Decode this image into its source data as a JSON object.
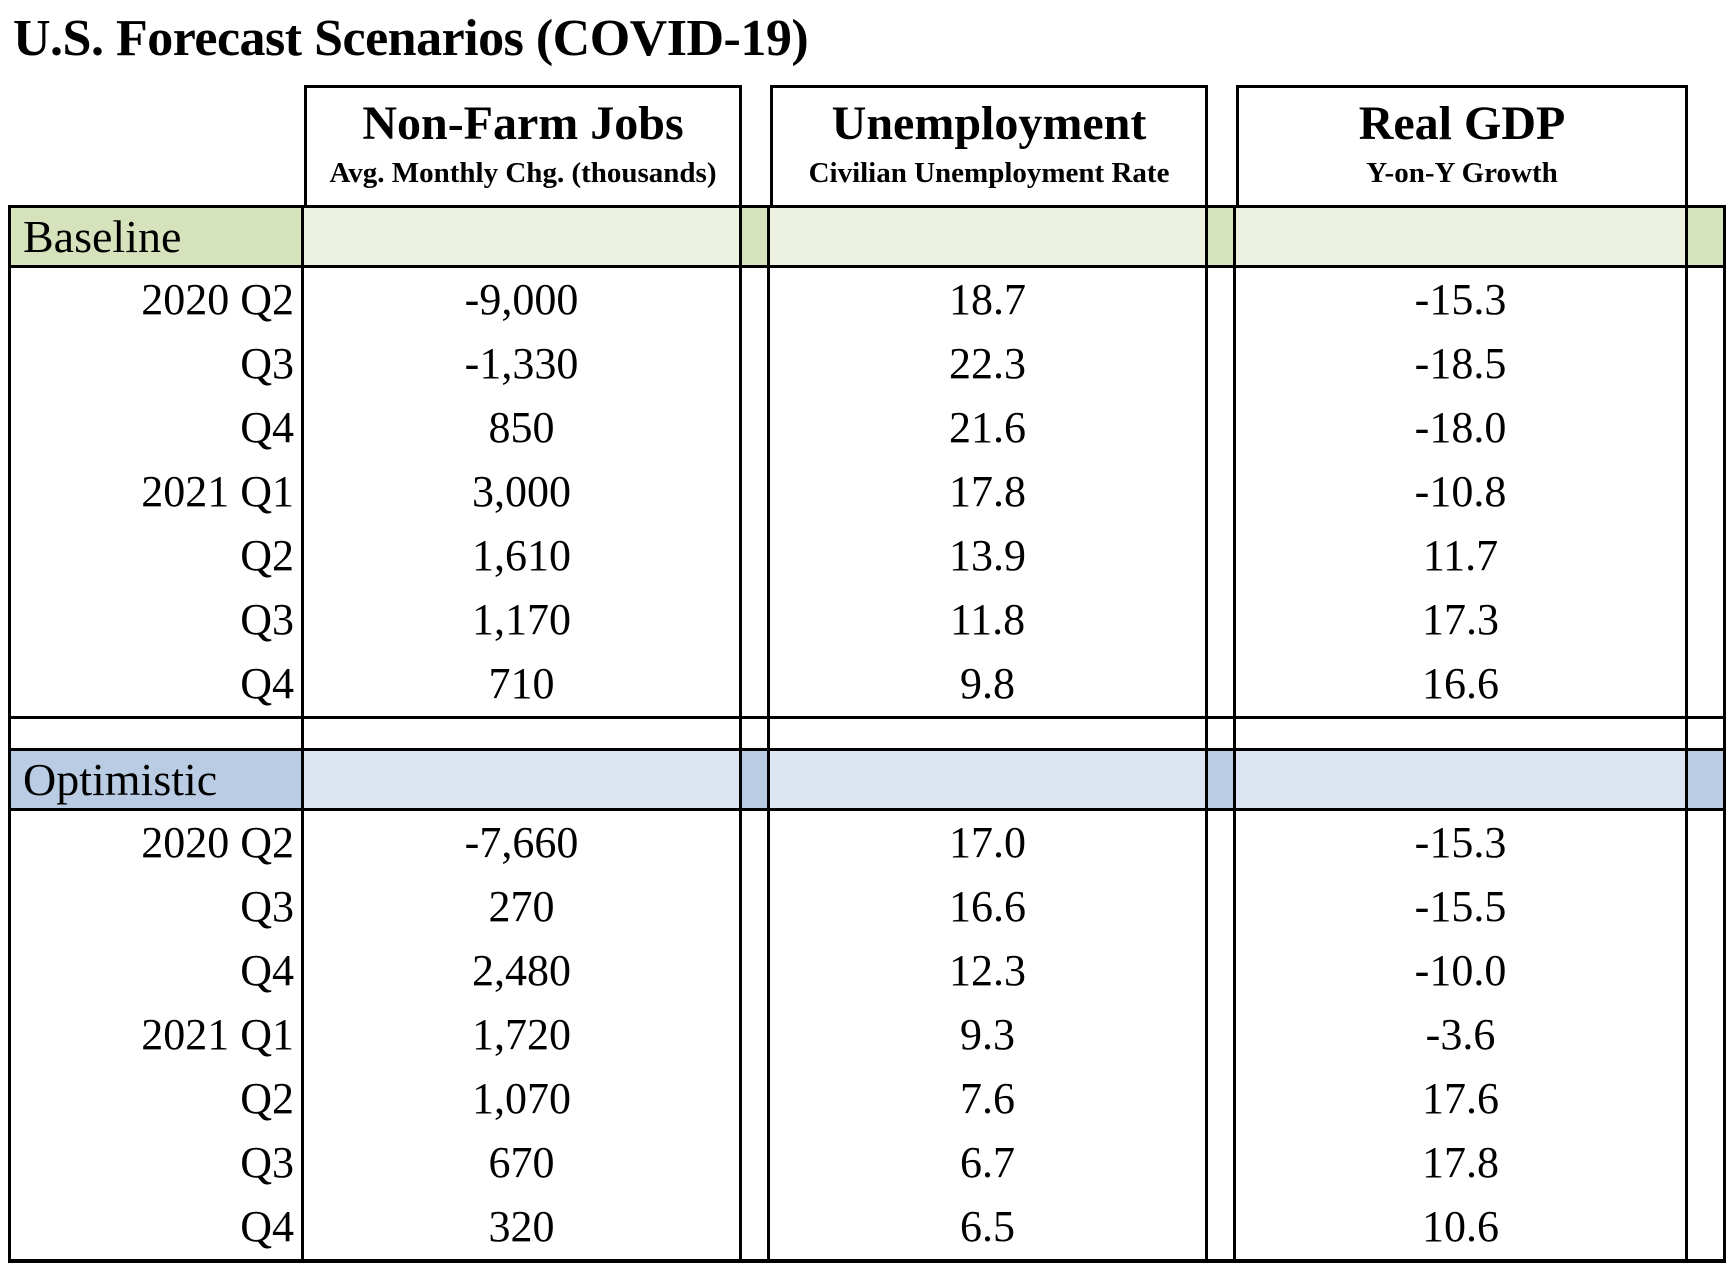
{
  "title": "U.S. Forecast Scenarios (COVID-19)",
  "columns": [
    {
      "title": "Non-Farm Jobs",
      "subtitle": "Avg. Monthly Chg. (thousands)"
    },
    {
      "title": "Unemployment",
      "subtitle": "Civilian Unemployment Rate"
    },
    {
      "title": "Real GDP",
      "subtitle": "Y-on-Y Growth"
    }
  ],
  "colors": {
    "border": "#000000",
    "background": "#ffffff",
    "text": "#000000",
    "baseline_band": "#d6e2bb",
    "baseline_band_light": "#edf2e0",
    "optimistic_band": "#b9cce4",
    "optimistic_band_light": "#dce6f2"
  },
  "sections": [
    {
      "label": "Baseline",
      "rows": [
        {
          "period": "2020 Q2",
          "jobs": "-9,000",
          "unemployment": "18.7",
          "gdp": "-15.3"
        },
        {
          "period": "Q3",
          "jobs": "-1,330",
          "unemployment": "22.3",
          "gdp": "-18.5"
        },
        {
          "period": "Q4",
          "jobs": "850",
          "unemployment": "21.6",
          "gdp": "-18.0"
        },
        {
          "period": "2021 Q1",
          "jobs": "3,000",
          "unemployment": "17.8",
          "gdp": "-10.8"
        },
        {
          "period": "Q2",
          "jobs": "1,610",
          "unemployment": "13.9",
          "gdp": "11.7"
        },
        {
          "period": "Q3",
          "jobs": "1,170",
          "unemployment": "11.8",
          "gdp": "17.3"
        },
        {
          "period": "Q4",
          "jobs": "710",
          "unemployment": "9.8",
          "gdp": "16.6"
        }
      ]
    },
    {
      "label": "Optimistic",
      "rows": [
        {
          "period": "2020 Q2",
          "jobs": "-7,660",
          "unemployment": "17.0",
          "gdp": "-15.3"
        },
        {
          "period": "Q3",
          "jobs": "270",
          "unemployment": "16.6",
          "gdp": "-15.5"
        },
        {
          "period": "Q4",
          "jobs": "2,480",
          "unemployment": "12.3",
          "gdp": "-10.0"
        },
        {
          "period": "2021 Q1",
          "jobs": "1,720",
          "unemployment": "9.3",
          "gdp": "-3.6"
        },
        {
          "period": "Q2",
          "jobs": "1,070",
          "unemployment": "7.6",
          "gdp": "17.6"
        },
        {
          "period": "Q3",
          "jobs": "670",
          "unemployment": "6.7",
          "gdp": "17.8"
        },
        {
          "period": "Q4",
          "jobs": "320",
          "unemployment": "6.5",
          "gdp": "10.6"
        }
      ]
    }
  ],
  "chart_data": {
    "type": "table",
    "title": "U.S. Forecast Scenarios (COVID-19)",
    "column_headers": [
      "",
      "Non-Farm Jobs — Avg. Monthly Chg. (thousands)",
      "Unemployment — Civilian Unemployment Rate",
      "Real GDP — Y-on-Y Growth"
    ],
    "rows": [
      [
        "Baseline 2020 Q2",
        -9000,
        18.7,
        -15.3
      ],
      [
        "Baseline 2020 Q3",
        -1330,
        22.3,
        -18.5
      ],
      [
        "Baseline 2020 Q4",
        850,
        21.6,
        -18.0
      ],
      [
        "Baseline 2021 Q1",
        3000,
        17.8,
        -10.8
      ],
      [
        "Baseline 2021 Q2",
        1610,
        13.9,
        11.7
      ],
      [
        "Baseline 2021 Q3",
        1170,
        11.8,
        17.3
      ],
      [
        "Baseline 2021 Q4",
        710,
        9.8,
        16.6
      ],
      [
        "Optimistic 2020 Q2",
        -7660,
        17.0,
        -15.3
      ],
      [
        "Optimistic 2020 Q3",
        270,
        16.6,
        -15.5
      ],
      [
        "Optimistic 2020 Q4",
        2480,
        12.3,
        -10.0
      ],
      [
        "Optimistic 2021 Q1",
        1720,
        9.3,
        -3.6
      ],
      [
        "Optimistic 2021 Q2",
        1070,
        7.6,
        17.6
      ],
      [
        "Optimistic 2021 Q3",
        670,
        6.7,
        17.8
      ],
      [
        "Optimistic 2021 Q4",
        320,
        6.5,
        10.6
      ]
    ]
  }
}
